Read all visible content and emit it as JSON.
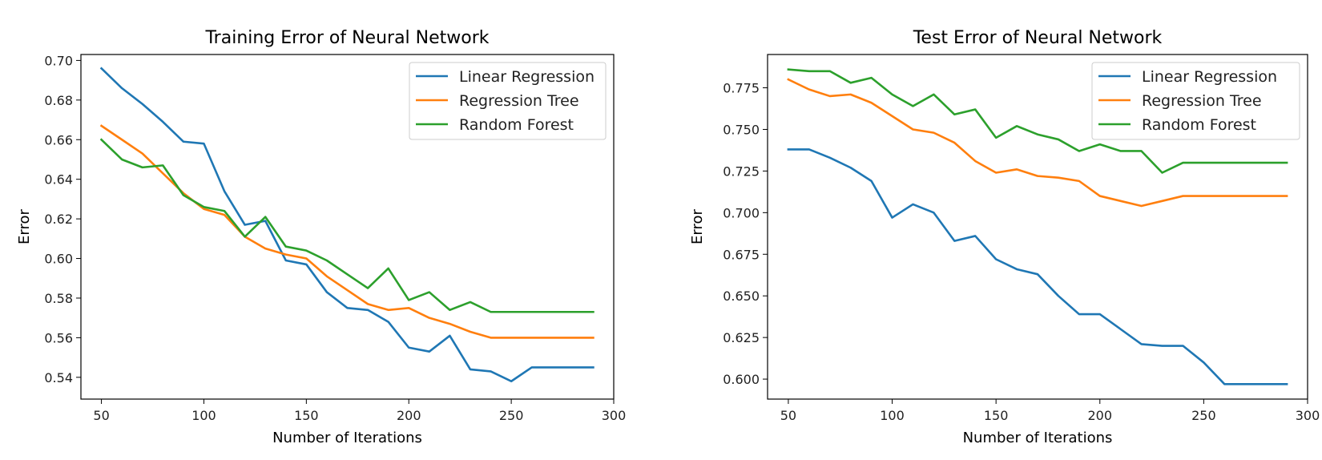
{
  "figure": {
    "background": "#ffffff"
  },
  "chart_data": [
    {
      "type": "line",
      "title": "Training Error of Neural Network",
      "xlabel": "Number of Iterations",
      "ylabel": "Error",
      "xlim": [
        40,
        300
      ],
      "ylim": [
        0.529,
        0.703
      ],
      "xticks": [
        50,
        100,
        150,
        200,
        250,
        300
      ],
      "yticks": [
        0.54,
        0.56,
        0.58,
        0.6,
        0.62,
        0.64,
        0.66,
        0.68,
        0.7
      ],
      "xtick_labels": [
        "50",
        "100",
        "150",
        "200",
        "250",
        "300"
      ],
      "ytick_labels": [
        "0.54",
        "0.56",
        "0.58",
        "0.60",
        "0.62",
        "0.64",
        "0.66",
        "0.68",
        "0.70"
      ],
      "grid": false,
      "legend_position": "top-right",
      "x": [
        50,
        60,
        70,
        80,
        90,
        100,
        110,
        120,
        130,
        140,
        150,
        160,
        170,
        180,
        190,
        200,
        210,
        220,
        230,
        240,
        250,
        260,
        270,
        280,
        290
      ],
      "series": [
        {
          "name": "Linear Regression",
          "color": "#1f77b4",
          "values": [
            0.696,
            0.686,
            0.678,
            0.669,
            0.659,
            0.658,
            0.634,
            0.617,
            0.619,
            0.599,
            0.597,
            0.583,
            0.575,
            0.574,
            0.568,
            0.555,
            0.553,
            0.561,
            0.544,
            0.543,
            0.538,
            0.545,
            0.545,
            0.545,
            0.545
          ]
        },
        {
          "name": "Regression Tree",
          "color": "#ff7f0e",
          "values": [
            0.667,
            0.66,
            0.653,
            0.643,
            0.633,
            0.625,
            0.622,
            0.611,
            0.605,
            0.602,
            0.6,
            0.591,
            0.584,
            0.577,
            0.574,
            0.575,
            0.57,
            0.567,
            0.563,
            0.56,
            0.56,
            0.56,
            0.56,
            0.56,
            0.56
          ]
        },
        {
          "name": "Random Forest",
          "color": "#2ca02c",
          "values": [
            0.66,
            0.65,
            0.646,
            0.647,
            0.632,
            0.626,
            0.624,
            0.611,
            0.621,
            0.606,
            0.604,
            0.599,
            0.592,
            0.585,
            0.595,
            0.579,
            0.583,
            0.574,
            0.578,
            0.573,
            0.573,
            0.573,
            0.573,
            0.573,
            0.573
          ]
        }
      ]
    },
    {
      "type": "line",
      "title": "Test Error of Neural Network",
      "xlabel": "Number of Iterations",
      "ylabel": "Error",
      "xlim": [
        40,
        300
      ],
      "ylim": [
        0.588,
        0.795
      ],
      "xticks": [
        50,
        100,
        150,
        200,
        250,
        300
      ],
      "yticks": [
        0.6,
        0.625,
        0.65,
        0.675,
        0.7,
        0.725,
        0.75,
        0.775
      ],
      "xtick_labels": [
        "50",
        "100",
        "150",
        "200",
        "250",
        "300"
      ],
      "ytick_labels": [
        "0.600",
        "0.625",
        "0.650",
        "0.675",
        "0.700",
        "0.725",
        "0.750",
        "0.775"
      ],
      "grid": false,
      "legend_position": "top-right",
      "x": [
        50,
        60,
        70,
        80,
        90,
        100,
        110,
        120,
        130,
        140,
        150,
        160,
        170,
        180,
        190,
        200,
        210,
        220,
        230,
        240,
        250,
        260,
        270,
        280,
        290
      ],
      "series": [
        {
          "name": "Linear Regression",
          "color": "#1f77b4",
          "values": [
            0.738,
            0.738,
            0.733,
            0.727,
            0.719,
            0.697,
            0.705,
            0.7,
            0.683,
            0.686,
            0.672,
            0.666,
            0.663,
            0.65,
            0.639,
            0.639,
            0.63,
            0.621,
            0.62,
            0.62,
            0.61,
            0.597,
            0.597,
            0.597,
            0.597
          ]
        },
        {
          "name": "Regression Tree",
          "color": "#ff7f0e",
          "values": [
            0.78,
            0.774,
            0.77,
            0.771,
            0.766,
            0.758,
            0.75,
            0.748,
            0.742,
            0.731,
            0.724,
            0.726,
            0.722,
            0.721,
            0.719,
            0.71,
            0.707,
            0.704,
            0.707,
            0.71,
            0.71,
            0.71,
            0.71,
            0.71,
            0.71
          ]
        },
        {
          "name": "Random Forest",
          "color": "#2ca02c",
          "values": [
            0.786,
            0.785,
            0.785,
            0.778,
            0.781,
            0.771,
            0.764,
            0.771,
            0.759,
            0.762,
            0.745,
            0.752,
            0.747,
            0.744,
            0.737,
            0.741,
            0.737,
            0.737,
            0.724,
            0.73,
            0.73,
            0.73,
            0.73,
            0.73,
            0.73
          ]
        }
      ]
    }
  ]
}
